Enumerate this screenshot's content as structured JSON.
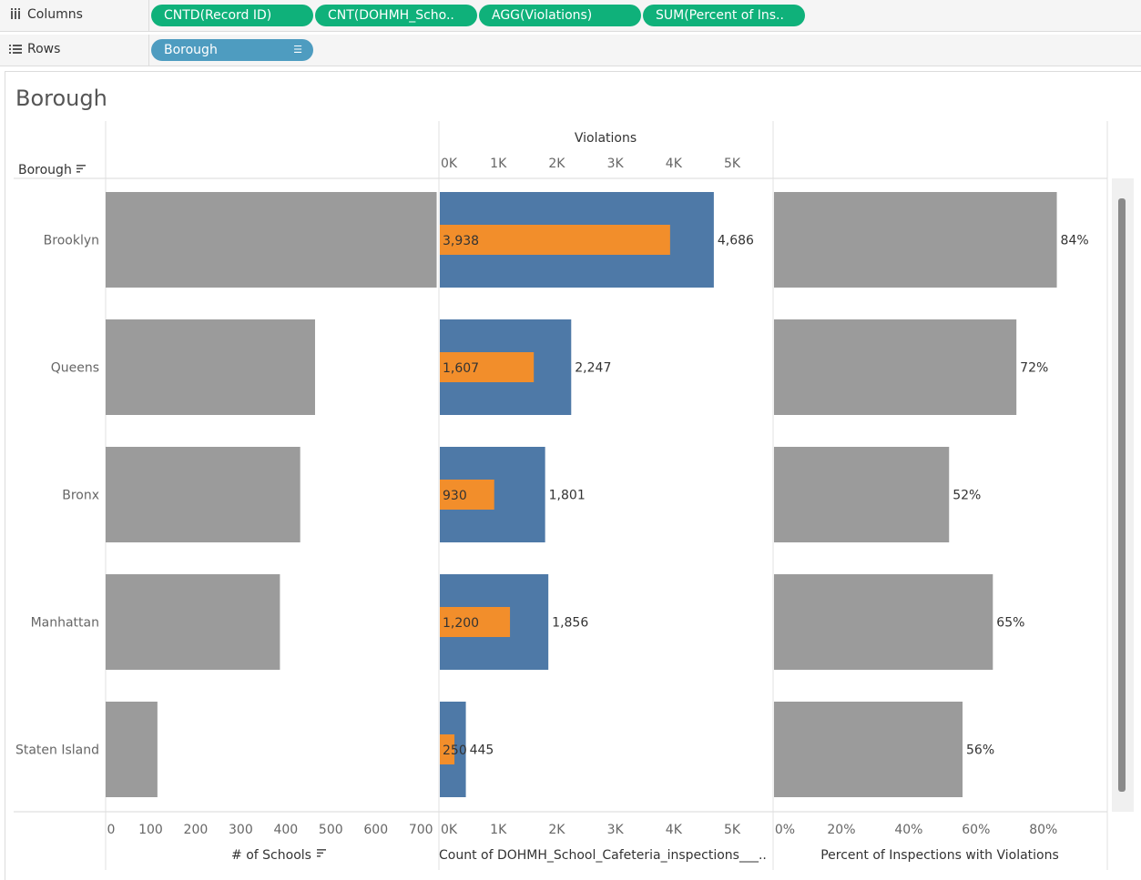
{
  "shelves": {
    "columns_label": "Columns",
    "columns_icon": "columns-icon",
    "rows_label": "Rows",
    "rows_icon": "rows-icon",
    "column_pills": [
      "CNTD(Record ID)",
      "CNT(DOHMH_Scho..",
      "AGG(Violations)",
      "SUM(Percent of Ins.."
    ],
    "row_pills": [
      "Borough"
    ]
  },
  "sheet": {
    "title": "Borough"
  },
  "colors": {
    "gray_bar": "#9b9b9b",
    "blue_bar": "#4e79a7",
    "orange_bar": "#f28e2b",
    "pill_green": "#0fb17a",
    "pill_blue": "#4e9cc0"
  },
  "chart_data": {
    "type": "bar",
    "orientation": "horizontal",
    "row_header": "Borough",
    "categories": [
      "Brooklyn",
      "Queens",
      "Bronx",
      "Manhattan",
      "Staten Island"
    ],
    "panels": [
      {
        "name": "schools",
        "xlabel": "# of Schools",
        "x_ticks": [
          "0",
          "100",
          "200",
          "300",
          "400",
          "500",
          "600",
          "700"
        ],
        "tick_values": [
          0,
          100,
          200,
          300,
          400,
          500,
          600,
          700
        ],
        "xlim": [
          0,
          740
        ],
        "values": [
          735,
          465,
          432,
          387,
          115
        ],
        "show_labels": false
      },
      {
        "name": "inspections",
        "top_title": "Violations",
        "xlabel": "Count of DOHMH_School_Cafeteria_inspections___..",
        "x_ticks": [
          "0K",
          "1K",
          "2K",
          "3K",
          "4K",
          "5K"
        ],
        "tick_values": [
          0,
          1000,
          2000,
          3000,
          4000,
          5000
        ],
        "xlim": [
          0,
          5700
        ],
        "series": [
          {
            "name": "Count of Inspections",
            "values": [
              4686,
              2247,
              1801,
              1856,
              445
            ],
            "labels": [
              "4,686",
              "2,247",
              "1,801",
              "1,856",
              "445"
            ]
          },
          {
            "name": "Violations",
            "values": [
              3938,
              1607,
              930,
              1200,
              250
            ],
            "labels": [
              "3,938",
              "1,607",
              "930",
              "1,200",
              "250"
            ]
          }
        ]
      },
      {
        "name": "percent",
        "xlabel": "Percent of Inspections with Violations",
        "x_ticks": [
          "0%",
          "20%",
          "40%",
          "60%",
          "80%"
        ],
        "tick_values": [
          0,
          0.2,
          0.4,
          0.6,
          0.8
        ],
        "xlim": [
          0,
          0.99
        ],
        "values": [
          0.84,
          0.72,
          0.52,
          0.65,
          0.56
        ],
        "labels": [
          "84%",
          "72%",
          "52%",
          "65%",
          "56%"
        ]
      }
    ]
  }
}
